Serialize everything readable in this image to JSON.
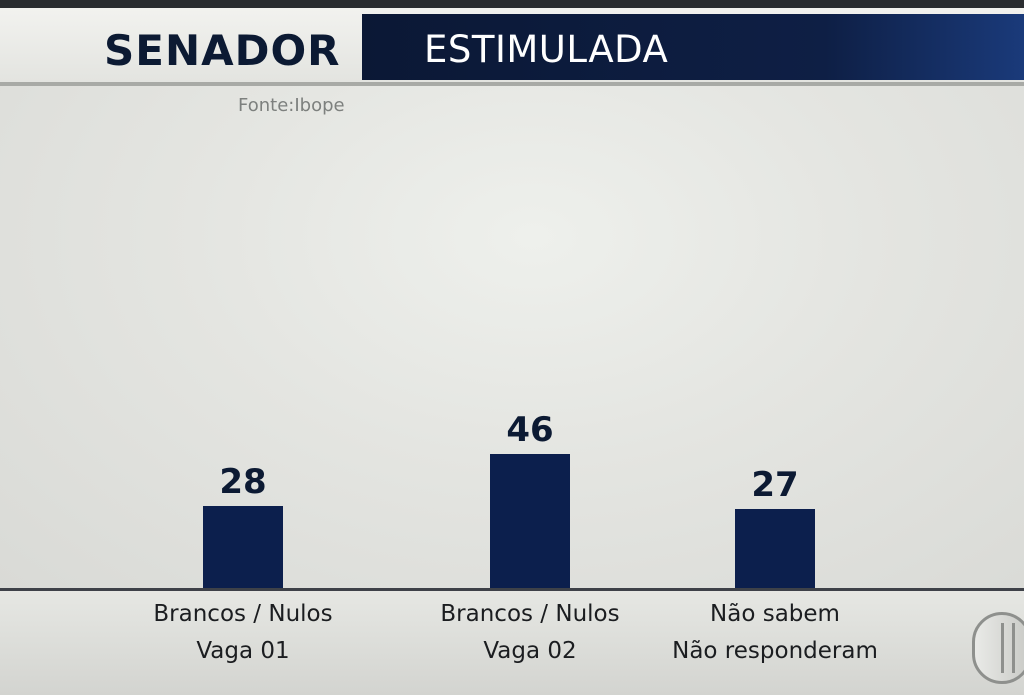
{
  "header": {
    "title_left": "SENADOR",
    "title_right": "ESTIMULADA"
  },
  "source": "Fonte:Ibope",
  "chart_data": {
    "type": "bar",
    "categories": [
      [
        "Brancos / Nulos",
        "Vaga 01"
      ],
      [
        "Brancos / Nulos",
        "Vaga 02"
      ],
      [
        "Não sabem",
        "Não responderam"
      ]
    ],
    "values": [
      28,
      46,
      27
    ],
    "value_labels": [
      "28",
      "46",
      "27"
    ],
    "title": "SENADOR ESTIMULADA",
    "bar_color": "#0c1f4d"
  },
  "colors": {
    "brand_navy": "#0b1835",
    "bar": "#0c1f4d",
    "background": "#d8d9d6"
  },
  "icons": {
    "broadcaster_logo": "broadcaster-logo-icon"
  }
}
